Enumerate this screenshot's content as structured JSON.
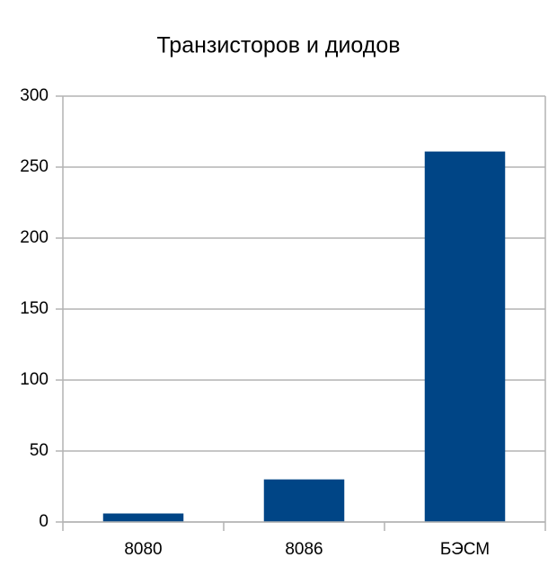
{
  "chart_data": {
    "type": "bar",
    "title": "Транзисторов и диодов",
    "categories": [
      "8080",
      "8086",
      "БЭСМ"
    ],
    "values": [
      6,
      30,
      261
    ],
    "color": "#004586",
    "ylim": [
      0,
      300
    ],
    "yticks": [
      0,
      50,
      100,
      150,
      200,
      250,
      300
    ],
    "grid": true
  }
}
